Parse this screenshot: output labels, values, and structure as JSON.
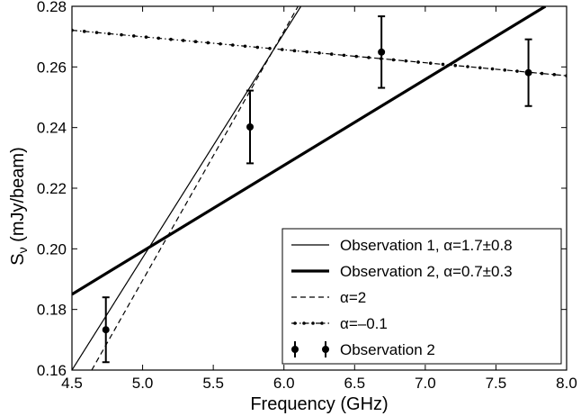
{
  "chart_data": {
    "type": "scatter",
    "title": "",
    "xlabel": "Frequency (GHz)",
    "ylabel": "Sν (mJy/beam)",
    "ylabel_main": "S",
    "ylabel_sub": "ν",
    "ylabel_rest": " (mJy/beam)",
    "xlim": [
      4.5,
      8.0
    ],
    "ylim": [
      0.16,
      0.28
    ],
    "xticks": [
      "4.5",
      "5.0",
      "5.5",
      "6.0",
      "6.5",
      "7.0",
      "7.5",
      "8.0"
    ],
    "yticks": [
      "0.16",
      "0.18",
      "0.20",
      "0.22",
      "0.24",
      "0.26",
      "0.28"
    ],
    "grid": false,
    "legend_position": "lower-right",
    "series": [
      {
        "name": "Observation 1, α=1.7±0.8",
        "style": "thin-solid",
        "x": [
          4.5,
          6.12
        ],
        "y": [
          0.16,
          0.28
        ]
      },
      {
        "name": "Observation 2, α=0.7±0.3",
        "style": "thick-solid",
        "x": [
          4.5,
          7.85
        ],
        "y": [
          0.185,
          0.28
        ]
      },
      {
        "name": "α=2",
        "style": "dashed",
        "x": [
          4.64,
          6.1
        ],
        "y": [
          0.16,
          0.28
        ]
      },
      {
        "name": "α=–0.1",
        "style": "dash-dot",
        "x": [
          4.5,
          8.0
        ],
        "y": [
          0.2721,
          0.2571
        ]
      },
      {
        "name": "Observation 2",
        "style": "errorbar",
        "x": [
          4.74,
          5.76,
          6.69,
          7.73
        ],
        "y": [
          0.1733,
          0.2402,
          0.2649,
          0.2581
        ],
        "yerr": [
          0.0107,
          0.012,
          0.0118,
          0.011
        ]
      }
    ]
  }
}
